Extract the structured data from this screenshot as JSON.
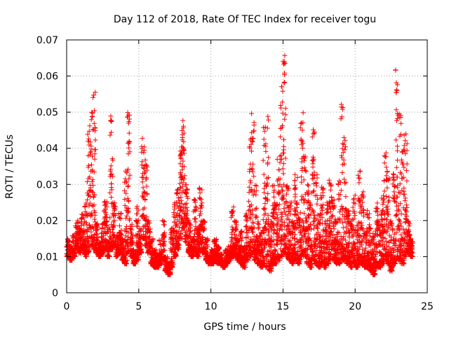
{
  "chart_data": {
    "type": "scatter",
    "title": "Day 112 of 2018, Rate Of TEC Index for receiver togu",
    "xlabel": "GPS time / hours",
    "ylabel": "ROTI / TECUs",
    "xlim": [
      0,
      25
    ],
    "ylim": [
      0,
      0.07
    ],
    "xticks": [
      0,
      5,
      10,
      15,
      20,
      25
    ],
    "yticks": [
      0,
      0.01,
      0.02,
      0.03,
      0.04,
      0.05,
      0.06,
      0.07
    ],
    "xtick_labels": [
      "0",
      "5",
      "10",
      "15",
      "20",
      "25"
    ],
    "ytick_labels": [
      "0",
      "0.01",
      "0.02",
      "0.03",
      "0.04",
      "0.05",
      "0.06",
      "0.07"
    ],
    "grid": true,
    "marker": "plus",
    "color": "#ff0000",
    "series": [
      {
        "x": [
          0.0,
          0.2,
          0.4,
          0.6,
          0.8,
          1.0,
          1.2,
          1.4,
          1.6,
          1.8,
          2.0,
          2.2,
          2.4,
          2.6,
          2.8,
          3.0,
          3.2,
          3.4,
          3.6,
          3.8,
          4.0,
          4.2,
          4.4,
          4.6,
          4.8,
          5.0,
          5.2,
          5.4,
          5.6,
          5.8,
          6.0,
          6.2,
          6.4,
          6.6,
          6.8,
          7.0,
          7.2,
          7.4,
          7.6,
          7.8,
          8.0,
          8.2,
          8.4,
          8.6,
          8.8,
          9.0,
          9.2,
          9.4,
          9.6,
          9.8,
          10.0,
          10.2,
          10.4,
          10.6,
          10.8,
          11.0,
          11.2,
          11.4,
          11.6,
          11.8,
          12.0,
          12.2,
          12.4,
          12.6,
          12.8,
          13.0,
          13.2,
          13.4,
          13.6,
          13.8,
          14.0,
          14.2,
          14.4,
          14.6,
          14.8,
          15.0,
          15.2,
          15.4,
          15.6,
          15.8,
          16.0,
          16.2,
          16.4,
          16.6,
          16.8,
          17.0,
          17.2,
          17.4,
          17.6,
          17.8,
          18.0,
          18.2,
          18.4,
          18.6,
          18.8,
          19.0,
          19.2,
          19.4,
          19.6,
          19.8,
          20.0,
          20.2,
          20.4,
          20.6,
          20.8,
          21.0,
          21.2,
          21.4,
          21.6,
          21.8,
          22.0,
          22.2,
          22.4,
          22.6,
          22.8,
          23.0,
          23.2,
          23.4,
          23.6,
          23.8
        ],
        "y": [
          0.015,
          0.013,
          0.016,
          0.02,
          0.018,
          0.022,
          0.025,
          0.045,
          0.051,
          0.056,
          0.02,
          0.014,
          0.02,
          0.026,
          0.018,
          0.049,
          0.025,
          0.016,
          0.022,
          0.015,
          0.034,
          0.05,
          0.019,
          0.012,
          0.024,
          0.018,
          0.043,
          0.037,
          0.02,
          0.015,
          0.012,
          0.011,
          0.015,
          0.02,
          0.01,
          0.008,
          0.018,
          0.025,
          0.03,
          0.041,
          0.048,
          0.03,
          0.02,
          0.015,
          0.027,
          0.018,
          0.03,
          0.02,
          0.015,
          0.01,
          0.012,
          0.015,
          0.013,
          0.011,
          0.009,
          0.012,
          0.013,
          0.024,
          0.02,
          0.015,
          0.018,
          0.013,
          0.022,
          0.045,
          0.05,
          0.03,
          0.02,
          0.018,
          0.046,
          0.05,
          0.02,
          0.03,
          0.025,
          0.038,
          0.059,
          0.066,
          0.03,
          0.025,
          0.02,
          0.035,
          0.021,
          0.052,
          0.04,
          0.03,
          0.025,
          0.047,
          0.033,
          0.022,
          0.03,
          0.02,
          0.025,
          0.033,
          0.026,
          0.021,
          0.031,
          0.055,
          0.043,
          0.024,
          0.02,
          0.027,
          0.019,
          0.035,
          0.028,
          0.017,
          0.023,
          0.018,
          0.017,
          0.025,
          0.02,
          0.028,
          0.039,
          0.035,
          0.02,
          0.033,
          0.062,
          0.05,
          0.04,
          0.044,
          0.02,
          0.015
        ],
        "x_upper": [
          0.2,
          0.4,
          0.6,
          0.8,
          1.0,
          1.2,
          1.4,
          1.6,
          1.8,
          2.0,
          2.2,
          2.4,
          2.6,
          2.8,
          3.0,
          3.2,
          3.4,
          3.6,
          3.8,
          4.0,
          4.2,
          4.4,
          4.6,
          4.8,
          5.0,
          5.2,
          5.4,
          5.6,
          5.8,
          6.0,
          6.2,
          6.4,
          6.6,
          6.8,
          7.0,
          7.2,
          7.4,
          7.6,
          7.8,
          8.0,
          8.2,
          8.4,
          8.6,
          8.8,
          9.0,
          9.2,
          9.4,
          9.6,
          9.8,
          10.0,
          10.2,
          10.4,
          10.6,
          10.8,
          11.0,
          11.2,
          11.4,
          11.6,
          11.8,
          12.0,
          12.2,
          12.4,
          12.6,
          12.8,
          13.0,
          13.2,
          13.4,
          13.6,
          13.8,
          14.0,
          14.2,
          14.4,
          14.6,
          14.8,
          15.0,
          15.2,
          15.4,
          15.6,
          15.8,
          16.0,
          16.2,
          16.4,
          16.6,
          16.8,
          17.0,
          17.2,
          17.4,
          17.6,
          17.8,
          18.0,
          18.2,
          18.4,
          18.6,
          18.8,
          19.0,
          19.2,
          19.4,
          19.6,
          19.8,
          20.0,
          20.2,
          20.4,
          20.6,
          20.8,
          21.0,
          21.2,
          21.4,
          21.6,
          21.8,
          22.0,
          22.2,
          22.4,
          22.6,
          22.8,
          23.0,
          23.2,
          23.4,
          23.6,
          23.8,
          24.0
        ],
        "y_lower": [
          0.01,
          0.009,
          0.01,
          0.012,
          0.011,
          0.012,
          0.01,
          0.011,
          0.013,
          0.012,
          0.011,
          0.01,
          0.011,
          0.012,
          0.01,
          0.012,
          0.013,
          0.01,
          0.011,
          0.009,
          0.008,
          0.011,
          0.01,
          0.008,
          0.009,
          0.011,
          0.015,
          0.013,
          0.011,
          0.008,
          0.007,
          0.007,
          0.008,
          0.009,
          0.006,
          0.005,
          0.007,
          0.01,
          0.012,
          0.015,
          0.018,
          0.014,
          0.011,
          0.01,
          0.011,
          0.01,
          0.012,
          0.011,
          0.009,
          0.008,
          0.008,
          0.009,
          0.008,
          0.008,
          0.007,
          0.008,
          0.009,
          0.01,
          0.01,
          0.009,
          0.008,
          0.007,
          0.009,
          0.01,
          0.011,
          0.009,
          0.008,
          0.007,
          0.008,
          0.007,
          0.006,
          0.008,
          0.008,
          0.009,
          0.01,
          0.011,
          0.01,
          0.009,
          0.008,
          0.009,
          0.008,
          0.01,
          0.01,
          0.008,
          0.007,
          0.009,
          0.008,
          0.007,
          0.008,
          0.007,
          0.008,
          0.009,
          0.009,
          0.008,
          0.008,
          0.009,
          0.009,
          0.008,
          0.007,
          0.008,
          0.007,
          0.008,
          0.008,
          0.007,
          0.007,
          0.006,
          0.005,
          0.007,
          0.007,
          0.008,
          0.009,
          0.008,
          0.006,
          0.008,
          0.009,
          0.009,
          0.008,
          0.01,
          0.011,
          0.01
        ]
      }
    ]
  }
}
